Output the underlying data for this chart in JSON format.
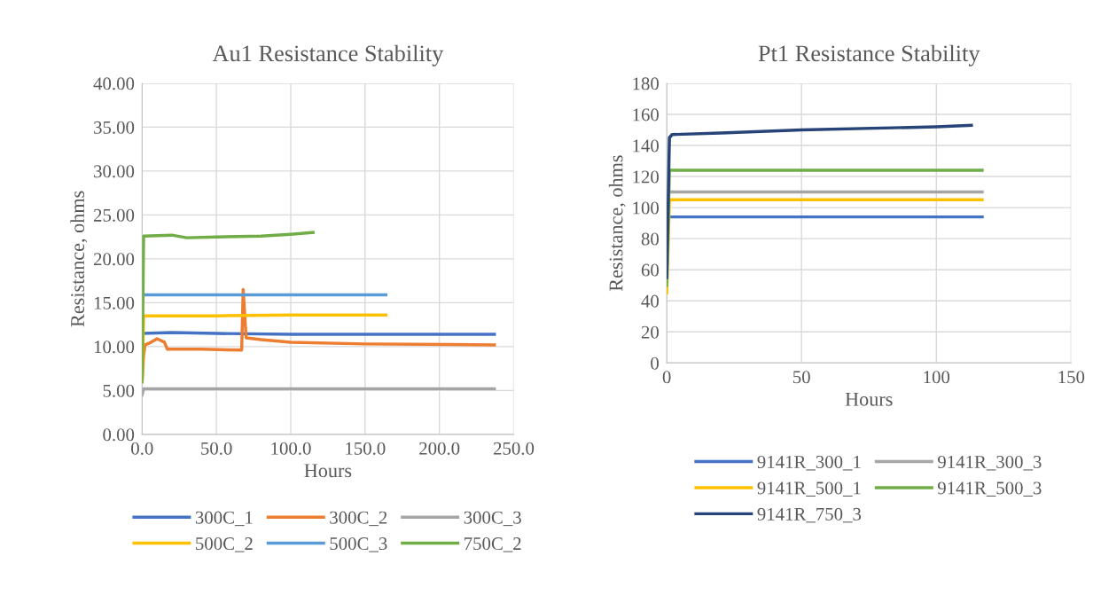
{
  "chart_data": [
    {
      "type": "line",
      "title": "Au1 Resistance Stability",
      "xlabel": "Hours",
      "ylabel": "Resistance, ohms",
      "xlim": [
        0,
        250
      ],
      "xticks": [
        {
          "value": 0,
          "label": "0.0"
        },
        {
          "value": 50,
          "label": "50.0"
        },
        {
          "value": 100,
          "label": "100.0"
        },
        {
          "value": 150,
          "label": "150.0"
        },
        {
          "value": 200,
          "label": "200.0"
        },
        {
          "value": 250,
          "label": "250.0"
        }
      ],
      "ylim": [
        0,
        40
      ],
      "yticks": [
        {
          "value": 0,
          "label": "0.00"
        },
        {
          "value": 5,
          "label": "5.00"
        },
        {
          "value": 10,
          "label": "10.00"
        },
        {
          "value": 15,
          "label": "15.00"
        },
        {
          "value": 20,
          "label": "20.00"
        },
        {
          "value": 25,
          "label": "25.00"
        },
        {
          "value": 30,
          "label": "30.00"
        },
        {
          "value": 35,
          "label": "35.00"
        },
        {
          "value": 40,
          "label": "40.00"
        }
      ],
      "grid": true,
      "legend": "bottom",
      "marker": "none",
      "line_style": "solid",
      "series": [
        {
          "name": "300C_1",
          "color": "#4472c4",
          "x": [
            1,
            20,
            50,
            100,
            150,
            200,
            237
          ],
          "values": [
            11.5,
            11.6,
            11.5,
            11.4,
            11.4,
            11.4,
            11.4
          ]
        },
        {
          "name": "300C_2",
          "color": "#ed7d31",
          "x": [
            0,
            1,
            2,
            5,
            10,
            15,
            17,
            40,
            67,
            67.5,
            68,
            70,
            80,
            100,
            150,
            237
          ],
          "values": [
            6,
            9,
            10.2,
            10.4,
            10.9,
            10.5,
            9.7,
            9.7,
            9.6,
            13,
            16.5,
            11,
            10.8,
            10.5,
            10.3,
            10.2
          ]
        },
        {
          "name": "300C_3",
          "color": "#a5a5a5",
          "x": [
            0,
            1,
            50,
            100,
            150,
            200,
            237
          ],
          "values": [
            4.5,
            5.2,
            5.2,
            5.2,
            5.2,
            5.2,
            5.2
          ]
        },
        {
          "name": "500C_2",
          "color": "#ffc000",
          "x": [
            0,
            1,
            50,
            100,
            164
          ],
          "values": [
            6,
            13.5,
            13.5,
            13.6,
            13.6
          ]
        },
        {
          "name": "500C_3",
          "color": "#5b9bd5",
          "x": [
            1,
            50,
            100,
            164
          ],
          "values": [
            15.9,
            15.9,
            15.9,
            15.9
          ]
        },
        {
          "name": "750C_2",
          "color": "#70ad47",
          "x": [
            0,
            1,
            20,
            30,
            50,
            80,
            100,
            115
          ],
          "values": [
            6,
            22.6,
            22.7,
            22.4,
            22.5,
            22.6,
            22.8,
            23
          ]
        }
      ]
    },
    {
      "type": "line",
      "title": "Pt1 Resistance Stability",
      "xlabel": "Hours",
      "ylabel": "Resistance, ohms",
      "xlim": [
        0,
        150
      ],
      "xticks": [
        0,
        50,
        100,
        150
      ],
      "ylim": [
        0,
        180
      ],
      "yticks": [
        0,
        20,
        40,
        60,
        80,
        100,
        120,
        140,
        160,
        180
      ],
      "grid": true,
      "legend": "bottom",
      "marker": "none",
      "line_style": "solid",
      "series": [
        {
          "name": "9141R_300_1",
          "color": "#4472c4",
          "x": [
            1,
            50,
            117
          ],
          "values": [
            94,
            94,
            94
          ]
        },
        {
          "name": "9141R_300_3",
          "color": "#a5a5a5",
          "x": [
            1,
            50,
            117
          ],
          "values": [
            110,
            110,
            110
          ]
        },
        {
          "name": "9141R_500_1",
          "color": "#ffc000",
          "x": [
            0,
            1,
            50,
            117
          ],
          "values": [
            45,
            105,
            105,
            105
          ]
        },
        {
          "name": "9141R_500_3",
          "color": "#70ad47",
          "x": [
            0,
            1,
            50,
            117
          ],
          "values": [
            50,
            124,
            124,
            124
          ]
        },
        {
          "name": "9141R_750_3",
          "color": "#264478",
          "x": [
            0,
            1,
            2,
            20,
            50,
            100,
            113
          ],
          "values": [
            55,
            145,
            147,
            148,
            150,
            152,
            153
          ]
        }
      ]
    }
  ]
}
